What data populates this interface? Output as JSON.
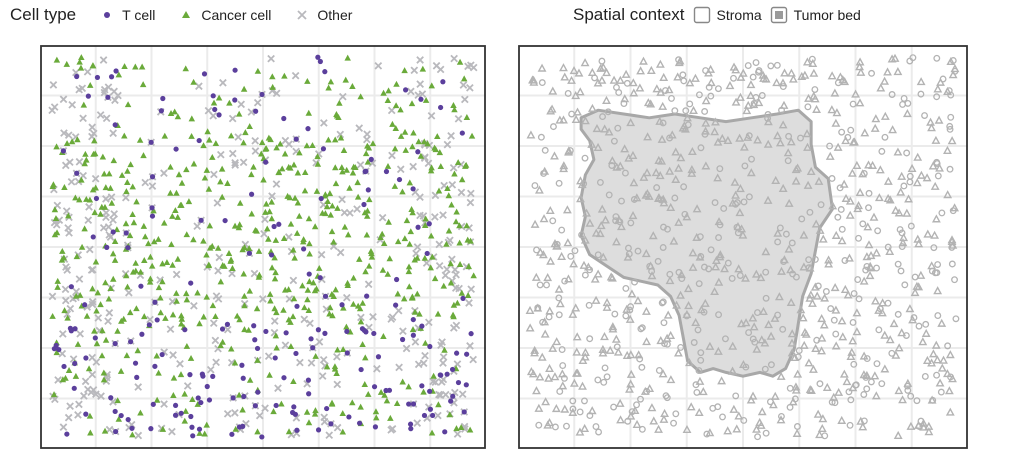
{
  "legend_left": {
    "title": "Cell type",
    "items": [
      {
        "label": "T cell",
        "shape": "dot",
        "color": "#5b3f9c"
      },
      {
        "label": "Cancer cell",
        "shape": "triangle",
        "color": "#6aaa3a"
      },
      {
        "label": "Other",
        "shape": "cross",
        "color": "#b9b9bd"
      }
    ]
  },
  "legend_right": {
    "title": "Spatial context",
    "items": [
      {
        "label": "Stroma",
        "key": "open-square"
      },
      {
        "label": "Tumor bed",
        "key": "filled-square"
      }
    ]
  },
  "colors": {
    "t_cell": "#5b3f9c",
    "cancer": "#6aaa3a",
    "other": "#b9b9bd",
    "context_marker": "#b3b3b3",
    "tumor_bed_fill": "#dddddd",
    "tumor_bed_edge": "#a8a8a8",
    "grid": "#ebebeb",
    "frame": "#333333"
  },
  "chart_data": [
    {
      "type": "scatter",
      "panel": "cell-type",
      "title": "",
      "xlabel": "",
      "ylabel": "",
      "xlim": [
        0,
        1
      ],
      "ylim": [
        0,
        1
      ],
      "grid": true,
      "legend": "top-left",
      "series": [
        {
          "name": "T cell",
          "marker": "dot",
          "approx_count": 200,
          "distribution": "scattered across the whole field, denser toward the lower band"
        },
        {
          "name": "Cancer cell",
          "marker": "triangle",
          "approx_count": 600,
          "distribution": "scattered across the field, densest in the centre band"
        },
        {
          "name": "Other",
          "marker": "cross",
          "approx_count": 380,
          "distribution": "scattered across the field, denser near the edges"
        }
      ]
    },
    {
      "type": "scatter",
      "panel": "spatial-context",
      "title": "",
      "xlabel": "",
      "ylabel": "",
      "xlim": [
        0,
        1
      ],
      "ylim": [
        0,
        1
      ],
      "grid": true,
      "legend": "top-right",
      "regions": [
        {
          "name": "Tumor bed",
          "polygon": [
            [
              0.12,
              0.84
            ],
            [
              0.16,
              0.86
            ],
            [
              0.22,
              0.85
            ],
            [
              0.28,
              0.84
            ],
            [
              0.34,
              0.85
            ],
            [
              0.4,
              0.84
            ],
            [
              0.46,
              0.83
            ],
            [
              0.52,
              0.84
            ],
            [
              0.58,
              0.85
            ],
            [
              0.63,
              0.86
            ],
            [
              0.66,
              0.83
            ],
            [
              0.66,
              0.77
            ],
            [
              0.67,
              0.71
            ],
            [
              0.7,
              0.68
            ],
            [
              0.71,
              0.6
            ],
            [
              0.68,
              0.55
            ],
            [
              0.67,
              0.49
            ],
            [
              0.66,
              0.43
            ],
            [
              0.64,
              0.37
            ],
            [
              0.63,
              0.3
            ],
            [
              0.62,
              0.23
            ],
            [
              0.6,
              0.18
            ],
            [
              0.57,
              0.16
            ],
            [
              0.54,
              0.17
            ],
            [
              0.5,
              0.16
            ],
            [
              0.46,
              0.17
            ],
            [
              0.43,
              0.18
            ],
            [
              0.4,
              0.17
            ],
            [
              0.37,
              0.2
            ],
            [
              0.36,
              0.26
            ],
            [
              0.35,
              0.32
            ],
            [
              0.33,
              0.37
            ],
            [
              0.3,
              0.4
            ],
            [
              0.26,
              0.41
            ],
            [
              0.22,
              0.42
            ],
            [
              0.18,
              0.45
            ],
            [
              0.14,
              0.48
            ],
            [
              0.12,
              0.53
            ],
            [
              0.13,
              0.58
            ],
            [
              0.12,
              0.63
            ],
            [
              0.13,
              0.69
            ],
            [
              0.15,
              0.73
            ],
            [
              0.14,
              0.78
            ],
            [
              0.12,
              0.81
            ]
          ]
        }
      ],
      "series": [
        {
          "name": "Cancer cell",
          "marker": "open-triangle",
          "approx_count": 600
        },
        {
          "name": "T cell",
          "marker": "open-circle",
          "approx_count": 200
        },
        {
          "name": "Other",
          "marker": "open-circle",
          "approx_count": 150
        }
      ]
    }
  ]
}
